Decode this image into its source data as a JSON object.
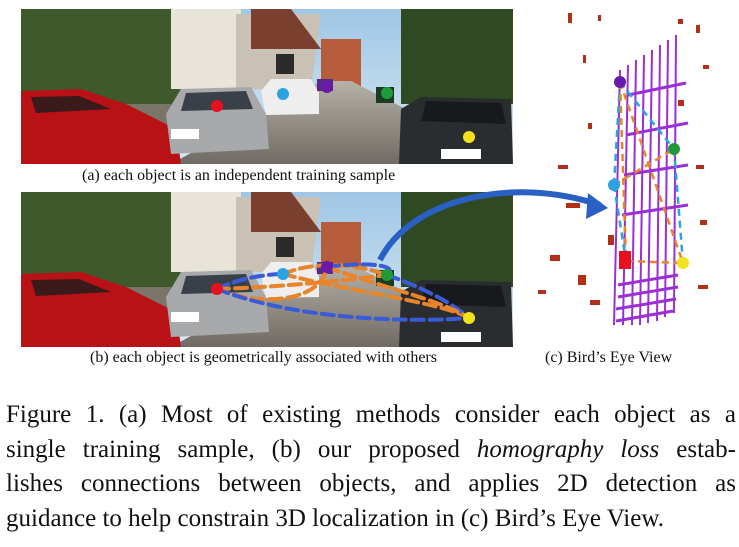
{
  "panels": {
    "a": {
      "label": "(a) each object is an independent training sample"
    },
    "b": {
      "label": "(b) each object is geometrically associated with others"
    },
    "c": {
      "label": "(c) Bird’s Eye View"
    }
  },
  "markers": {
    "red": "#e8101e",
    "blue": "#2aa3e0",
    "purple": "#6a1aa8",
    "green": "#1f9a3a",
    "yellow": "#f2e21a"
  },
  "caption": {
    "line1_a": "Figure 1.  (a) Most of existing methods consider each object as a",
    "line2_a": "single training sample, (b) our proposed ",
    "line2_em": "homography loss",
    "line2_b": " estab-",
    "line3": "lishes connections between objects, and applies 2D detection as",
    "line4": "guidance to help constrain 3D localization in (c) Bird’s Eye View."
  }
}
